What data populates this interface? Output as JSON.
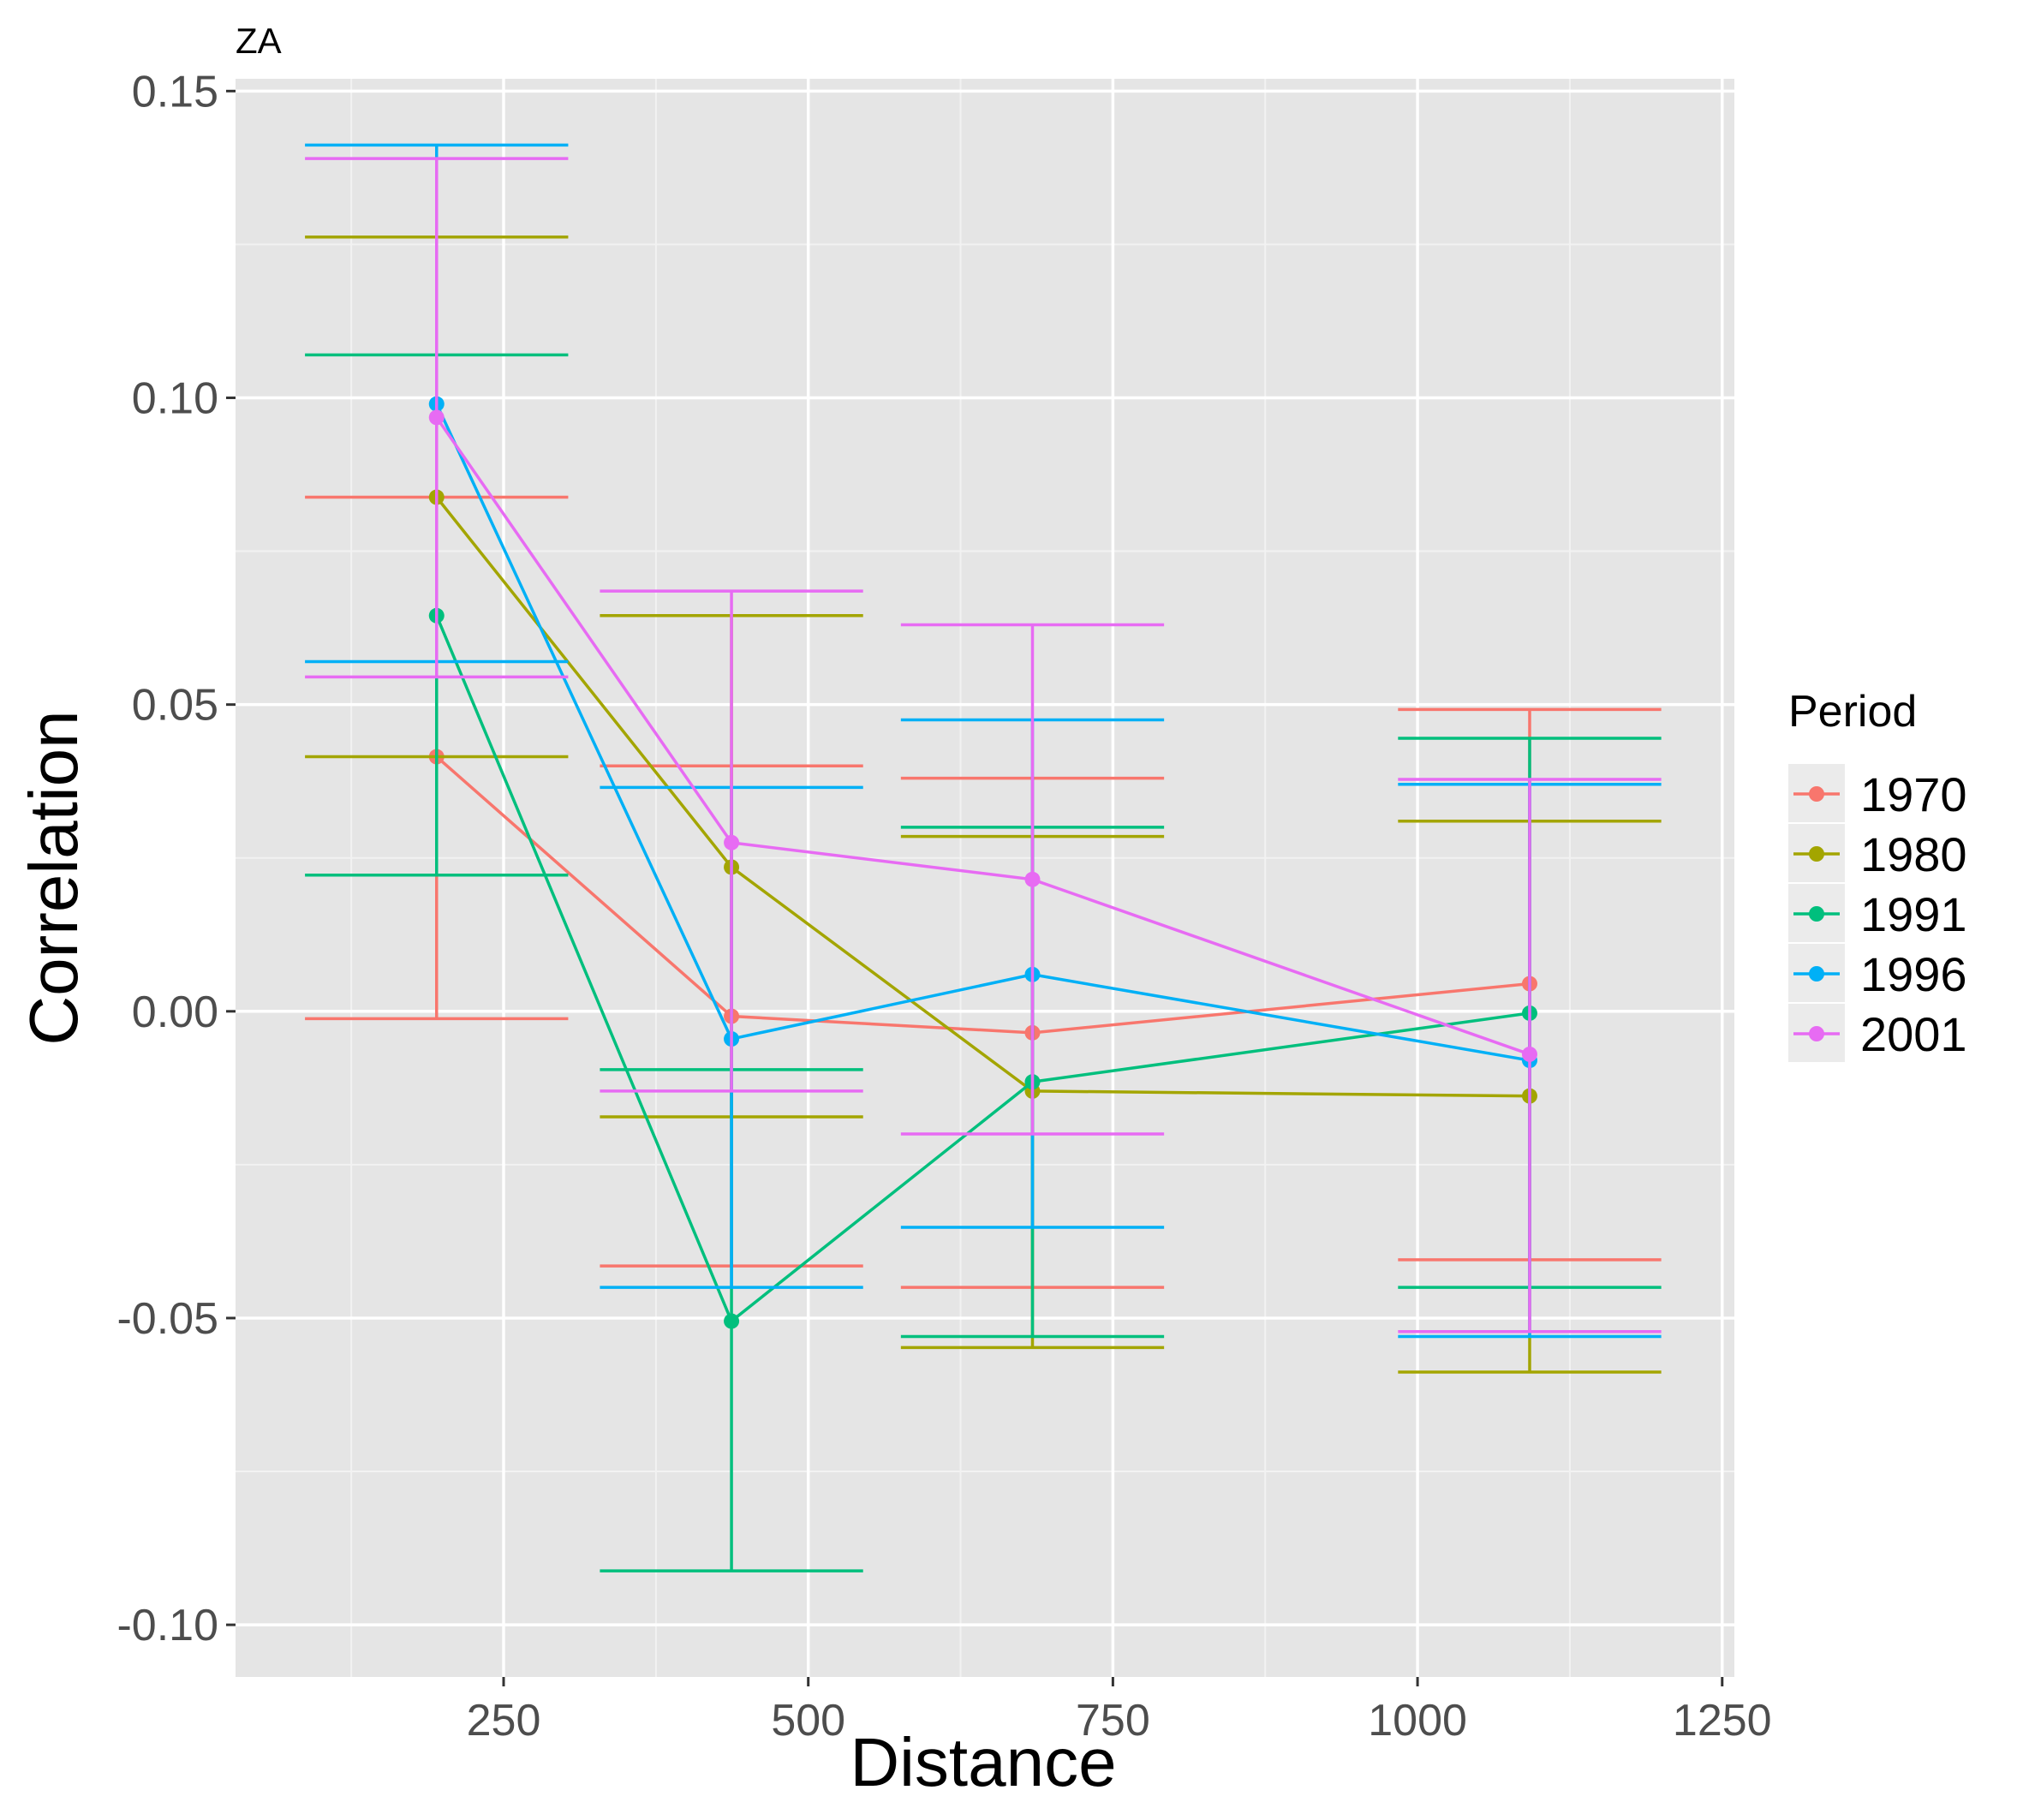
{
  "chart_data": {
    "type": "line",
    "title": "ZA",
    "xlabel": "Distance",
    "ylabel": "Correlation",
    "xlim": [
      30,
      1260
    ],
    "ylim": [
      -0.1085,
      0.152
    ],
    "x_ticks": [
      250,
      500,
      750,
      1000,
      1250
    ],
    "x_tick_labels": [
      "250",
      "500",
      "750",
      "1000",
      "1250"
    ],
    "x_minor_ticks": [
      125,
      375,
      625,
      875,
      1125
    ],
    "y_ticks": [
      -0.1,
      -0.05,
      0.0,
      0.05,
      0.1,
      0.15
    ],
    "y_tick_labels": [
      "-0.10",
      "-0.05",
      "0.00",
      "0.05",
      "0.10",
      "0.15"
    ],
    "y_minor_ticks": [
      -0.075,
      -0.025,
      0.025,
      0.075,
      0.125
    ],
    "x": [
      195,
      437,
      684,
      1092
    ],
    "errorbar_halfwidth": 108,
    "grid": true,
    "background": "#e5e5e5",
    "legend": {
      "title": "Period",
      "position": "right"
    },
    "series": [
      {
        "name": "1970",
        "color": "#f8766d",
        "values": [
          0.0415,
          -0.0008,
          -0.0035,
          0.0045
        ],
        "lower": [
          -0.0012,
          -0.0415,
          -0.045,
          -0.0405
        ],
        "upper": [
          0.0838,
          0.04,
          0.038,
          0.0492
        ]
      },
      {
        "name": "1980",
        "color": "#a3a500",
        "values": [
          0.0838,
          0.0235,
          -0.013,
          -0.0138
        ],
        "lower": [
          0.0415,
          -0.0172,
          -0.0548,
          -0.0588
        ],
        "upper": [
          0.1262,
          0.0645,
          0.0285,
          0.031
        ]
      },
      {
        "name": "1991",
        "color": "#00bf7d",
        "values": [
          0.0645,
          -0.0505,
          -0.0115,
          -0.0003
        ],
        "lower": [
          0.0222,
          -0.0912,
          -0.053,
          -0.045
        ],
        "upper": [
          0.107,
          -0.0095,
          0.03,
          0.0445
        ]
      },
      {
        "name": "1996",
        "color": "#00b0f6",
        "values": [
          0.099,
          -0.0045,
          0.006,
          -0.008
        ],
        "lower": [
          0.057,
          -0.045,
          -0.0352,
          -0.053
        ],
        "upper": [
          0.1412,
          0.0365,
          0.0475,
          0.037
        ]
      },
      {
        "name": "2001",
        "color": "#e76bf3",
        "values": [
          0.0968,
          0.0275,
          0.0215,
          -0.007
        ],
        "lower": [
          0.0545,
          -0.013,
          -0.02,
          -0.0522
        ],
        "upper": [
          0.139,
          0.0685,
          0.063,
          0.0378
        ]
      }
    ]
  }
}
